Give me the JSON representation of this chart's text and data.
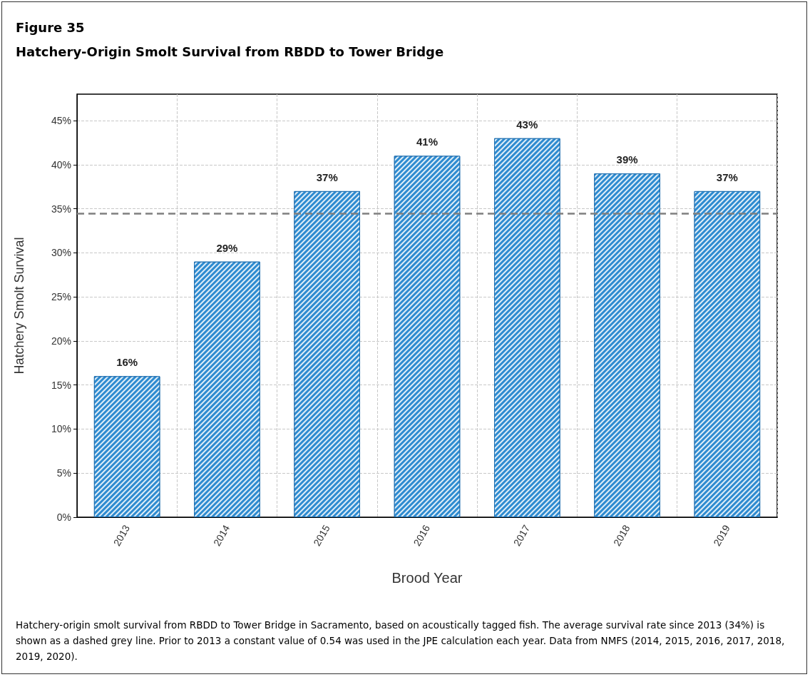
{
  "chart_data": {
    "type": "bar",
    "title": "Figure 35",
    "subtitle": "Hatchery-Origin Smolt Survival from RBDD to Tower Bridge",
    "xlabel": "Brood Year",
    "ylabel": "Hatchery Smolt Survival",
    "categories": [
      "2013",
      "2014",
      "2015",
      "2016",
      "2017",
      "2018",
      "2019"
    ],
    "values": [
      16,
      29,
      37,
      41,
      43,
      39,
      37
    ],
    "value_labels": [
      "16%",
      "29%",
      "37%",
      "41%",
      "43%",
      "39%",
      "37%"
    ],
    "color": "#2e8bd0",
    "ylim": [
      0,
      48
    ],
    "yticks": [
      {
        "value": 0,
        "label": "0%"
      },
      {
        "value": 5,
        "label": "5%"
      },
      {
        "value": 10,
        "label": "10%"
      },
      {
        "value": 15,
        "label": "15%"
      },
      {
        "value": 20,
        "label": "20%"
      },
      {
        "value": 25,
        "label": "25%"
      },
      {
        "value": 30,
        "label": "30%"
      },
      {
        "value": 35,
        "label": "35%"
      },
      {
        "value": 40,
        "label": "40%"
      },
      {
        "value": 45,
        "label": "45%"
      }
    ],
    "ref_lines": [
      {
        "axis": "y",
        "value": 34.5,
        "label": null,
        "color": "#7f7f7f",
        "line_style": "dashed"
      }
    ],
    "grid": true,
    "annotations": [
      "Hatchery-origin smolt survival from RBDD to Tower Bridge in Sacramento, based on acoustically tagged fish. The average survival rate since 2013 (34%) is shown as a dashed grey line. Prior to 2013 a constant value of 0.54 was used in the JPE calculation each year. Data from NMFS (2014, 2015, 2016, 2017, 2018, 2019, 2020)."
    ]
  }
}
